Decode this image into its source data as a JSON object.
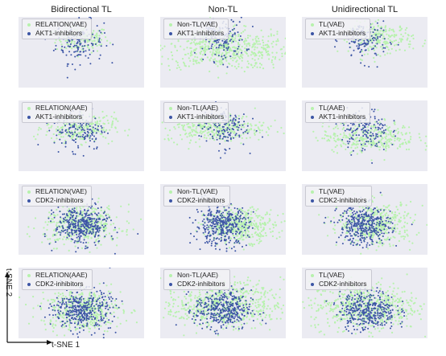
{
  "chart_data": {
    "type": "scatter",
    "column_titles": [
      "Bidirectional TL",
      "Non-TL",
      "Unidirectional TL"
    ],
    "xlabel": "t-SNE 1",
    "ylabel": "t-SNE 2",
    "grid": false,
    "legend_placement": "top-left",
    "colors": {
      "background": "#ebebf2",
      "generated": "#b7f2ad",
      "inhibitor": "#3c55a5"
    },
    "panels": [
      {
        "row": 1,
        "col": 1,
        "legend": [
          "RELATION(VAE)",
          "AKT1-inhibitors"
        ],
        "generated": {
          "cx": 0.03,
          "cy": 0.55,
          "sx": 0.42,
          "sy": 0.28,
          "n": 150
        },
        "inhibitor": {
          "cx": -0.05,
          "cy": 0.45,
          "sx": 0.38,
          "sy": 0.45,
          "n": 140
        }
      },
      {
        "row": 1,
        "col": 2,
        "legend": [
          "Non-TL(VAE)",
          "AKT1-inhibitors"
        ],
        "generated": {
          "cx": 0.05,
          "cy": 0.12,
          "sx": 1.05,
          "sy": 0.42,
          "n": 550
        },
        "inhibitor": {
          "cx": -0.05,
          "cy": 0.55,
          "sx": 0.38,
          "sy": 0.45,
          "n": 150
        }
      },
      {
        "row": 1,
        "col": 3,
        "legend": [
          "TL(VAE)",
          "AKT1-inhibitors"
        ],
        "generated": {
          "cx": 0.55,
          "cy": 0.6,
          "sx": 0.5,
          "sy": 0.32,
          "n": 220
        },
        "inhibitor": {
          "cx": 0.0,
          "cy": 0.5,
          "sx": 0.36,
          "sy": 0.45,
          "n": 140
        }
      },
      {
        "row": 2,
        "col": 1,
        "legend": [
          "RELATION(AAE)",
          "AKT1-inhibitors"
        ],
        "generated": {
          "cx": -0.05,
          "cy": 0.35,
          "sx": 0.55,
          "sy": 0.32,
          "n": 260
        },
        "inhibitor": {
          "cx": -0.05,
          "cy": 0.3,
          "sx": 0.4,
          "sy": 0.45,
          "n": 150
        }
      },
      {
        "row": 2,
        "col": 2,
        "legend": [
          "Non-TL(AAE)",
          "AKT1-inhibitors"
        ],
        "generated": {
          "cx": -0.25,
          "cy": 0.35,
          "sx": 0.8,
          "sy": 0.3,
          "n": 330
        },
        "inhibitor": {
          "cx": 0.0,
          "cy": 0.4,
          "sx": 0.38,
          "sy": 0.45,
          "n": 150
        }
      },
      {
        "row": 2,
        "col": 3,
        "legend": [
          "TL(AAE)",
          "AKT1-inhibitors"
        ],
        "generated": {
          "cx": 0.15,
          "cy": -0.05,
          "sx": 0.75,
          "sy": 0.32,
          "n": 330
        },
        "inhibitor": {
          "cx": 0.0,
          "cy": 0.25,
          "sx": 0.38,
          "sy": 0.45,
          "n": 150
        }
      },
      {
        "row": 3,
        "col": 1,
        "legend": [
          "RELATION(VAE)",
          "CDK2-inhibitors"
        ],
        "generated": {
          "cx": 0.05,
          "cy": -0.25,
          "sx": 0.62,
          "sy": 0.42,
          "n": 420
        },
        "inhibitor": {
          "cx": 0.0,
          "cy": -0.25,
          "sx": 0.42,
          "sy": 0.4,
          "n": 380
        }
      },
      {
        "row": 3,
        "col": 2,
        "legend": [
          "Non-TL(VAE)",
          "CDK2-inhibitors"
        ],
        "generated": {
          "cx": 0.55,
          "cy": -0.25,
          "sx": 0.55,
          "sy": 0.35,
          "n": 420
        },
        "inhibitor": {
          "cx": -0.05,
          "cy": -0.25,
          "sx": 0.42,
          "sy": 0.42,
          "n": 380
        }
      },
      {
        "row": 3,
        "col": 3,
        "legend": [
          "TL(VAE)",
          "CDK2-inhibitors"
        ],
        "generated": {
          "cx": 0.35,
          "cy": -0.2,
          "sx": 0.6,
          "sy": 0.45,
          "n": 430
        },
        "inhibitor": {
          "cx": 0.0,
          "cy": -0.25,
          "sx": 0.42,
          "sy": 0.42,
          "n": 380
        }
      },
      {
        "row": 4,
        "col": 1,
        "legend": [
          "RELATION(AAE)",
          "CDK2-inhibitors"
        ],
        "generated": {
          "cx": 0.0,
          "cy": -0.3,
          "sx": 0.65,
          "sy": 0.45,
          "n": 430
        },
        "inhibitor": {
          "cx": 0.05,
          "cy": -0.3,
          "sx": 0.45,
          "sy": 0.42,
          "n": 390
        }
      },
      {
        "row": 4,
        "col": 2,
        "legend": [
          "Non-TL(AAE)",
          "CDK2-inhibitors"
        ],
        "generated": {
          "cx": 0.0,
          "cy": -0.05,
          "sx": 0.95,
          "sy": 0.48,
          "n": 650
        },
        "inhibitor": {
          "cx": 0.0,
          "cy": -0.3,
          "sx": 0.45,
          "sy": 0.42,
          "n": 380
        }
      },
      {
        "row": 4,
        "col": 3,
        "legend": [
          "TL(VAE)",
          "CDK2-inhibitors"
        ],
        "generated": {
          "cx": 0.0,
          "cy": -0.15,
          "sx": 0.85,
          "sy": 0.5,
          "n": 600
        },
        "inhibitor": {
          "cx": 0.1,
          "cy": -0.3,
          "sx": 0.45,
          "sy": 0.42,
          "n": 380
        }
      }
    ]
  }
}
